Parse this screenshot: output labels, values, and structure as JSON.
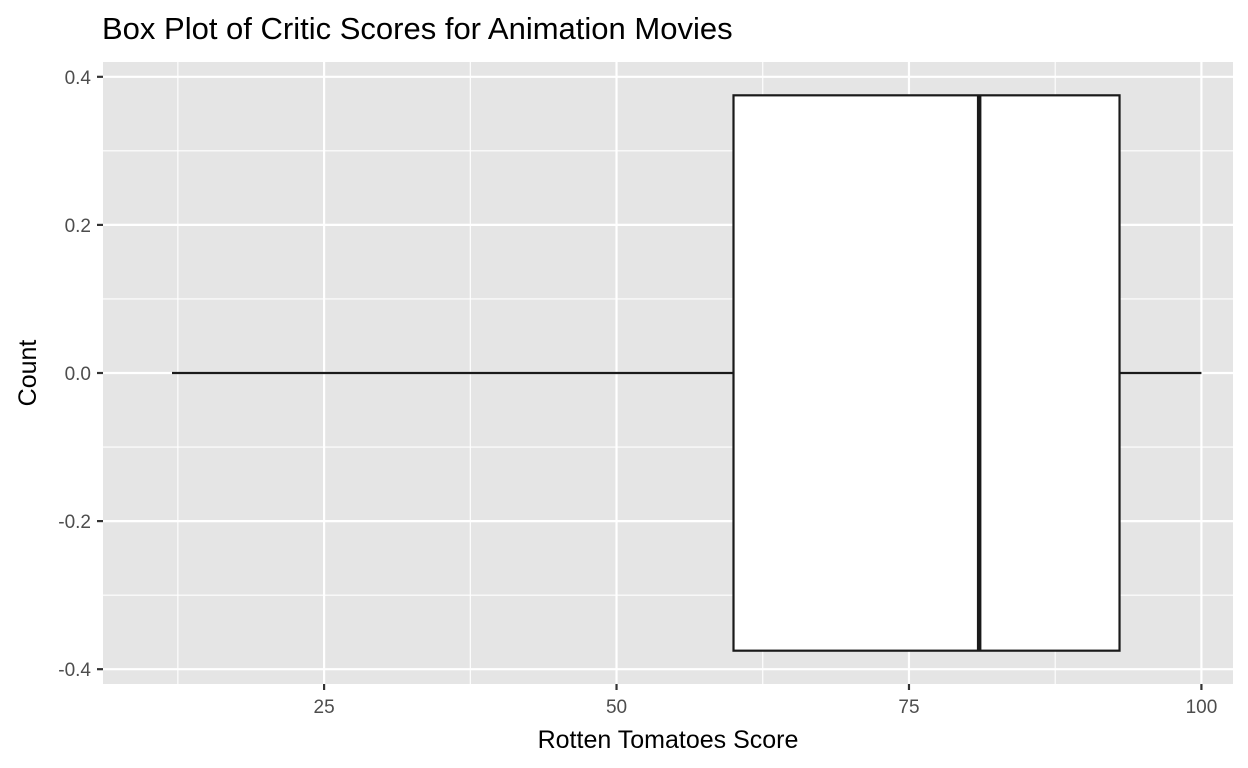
{
  "chart_data": {
    "type": "boxplot",
    "title": "Box Plot of Critic Scores for Animation Movies",
    "xlabel": "Rotten Tomatoes Score",
    "ylabel": "Count",
    "xlim": [
      6.1,
      102.7
    ],
    "ylim": [
      -0.42,
      0.42
    ],
    "x_ticks": [
      25,
      50,
      75,
      100
    ],
    "x_tick_labels": [
      "25",
      "50",
      "75",
      "100"
    ],
    "y_ticks": [
      -0.4,
      -0.2,
      0.0,
      0.2,
      0.4
    ],
    "y_tick_labels": [
      "-0.4",
      "-0.2",
      "0.0",
      "0.2",
      "0.4"
    ],
    "grid": true,
    "box": {
      "y_center": 0.0,
      "y_half_width": 0.375,
      "whisker_low": 12,
      "q1": 60,
      "median": 81,
      "q3": 93,
      "whisker_high": 100
    },
    "colors": {
      "panel_background": "#e5e5e5",
      "grid": "#ffffff",
      "box_fill": "#ffffff",
      "box_line": "#1a1a1a",
      "tick_text": "#4d4d4d",
      "tick_mark": "#333333"
    }
  }
}
